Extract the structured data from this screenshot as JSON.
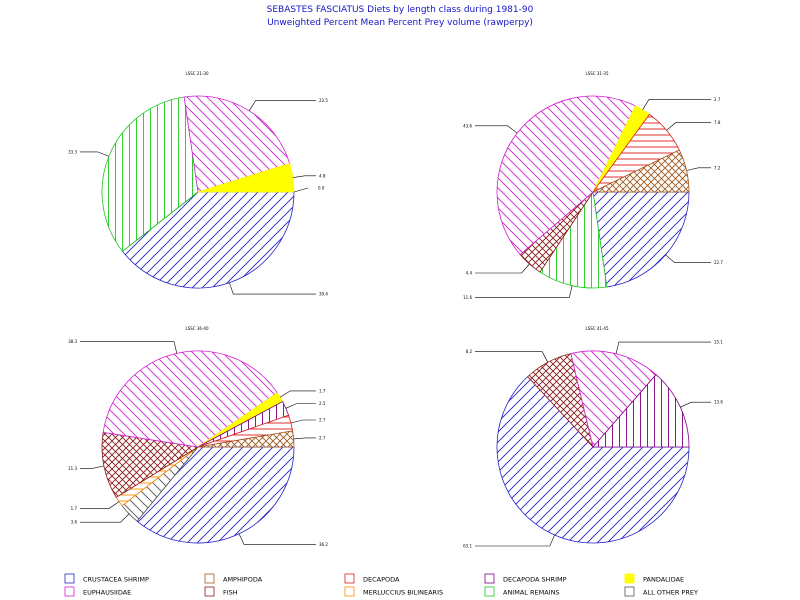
{
  "header": {
    "title": "SEBASTES FASCIATUS Diets by length class during 1981-90",
    "subtitle": "Unweighted Percent Mean Percent Prey  volume (rawperpy)"
  },
  "legend": [
    {
      "name": "CRUSTACEA SHRIMP",
      "color": "#2323c8",
      "pattern": "diag",
      "icon": "blue-diagonal-hatch-swatch"
    },
    {
      "name": "AMPHIPODA",
      "color": "#a0581e",
      "pattern": "cross",
      "icon": "brown-crosshatch-swatch"
    },
    {
      "name": "DECAPODA",
      "color": "#e01b1b",
      "pattern": "horiz",
      "icon": "red-horizontal-hatch-swatch"
    },
    {
      "name": "DECAPODA SHRIMP",
      "color": "#800080",
      "pattern": "vert",
      "icon": "purple-vertical-hatch-swatch"
    },
    {
      "name": "PANDALIDAE",
      "color": "#ffff00",
      "pattern": "solid",
      "icon": "yellow-solid-swatch"
    },
    {
      "name": "EUPHAUSIIDAE",
      "color": "#d21ed2",
      "pattern": "diagL",
      "icon": "magenta-diagonal-hatch-swatch"
    },
    {
      "name": "FISH",
      "color": "#8b1a1a",
      "pattern": "cross",
      "icon": "darkred-crosshatch-swatch"
    },
    {
      "name": "MERLUCCIUS BILINEARIS",
      "color": "#ff8c00",
      "pattern": "horiz",
      "icon": "orange-horizontal-hatch-swatch"
    },
    {
      "name": "ANIMAL REMAINS",
      "color": "#1ec81e",
      "pattern": "vert",
      "icon": "green-vertical-hatch-swatch"
    },
    {
      "name": "ALL OTHER PREY",
      "color": "#555555",
      "pattern": "diagL",
      "icon": "grey-diagonal-hatch-swatch"
    }
  ],
  "chart_data": [
    {
      "type": "pie",
      "title": "LSSC 21-30",
      "slices": [
        {
          "category": "CRUSTACEA SHRIMP",
          "value": 39.4,
          "label": "39.4"
        },
        {
          "category": "ANIMAL REMAINS",
          "value": 33.3,
          "label": "33.3"
        },
        {
          "category": "EUPHAUSIIDAE",
          "value": 22.5,
          "label": "22.5"
        },
        {
          "category": "PANDALIDAE",
          "value": 4.8,
          "label": "4.8"
        }
      ],
      "extra_labels": [
        "0.0"
      ]
    },
    {
      "type": "pie",
      "title": "LSSC 31-35",
      "slices": [
        {
          "category": "CRUSTACEA SHRIMP",
          "value": 22.7,
          "label": "22.7"
        },
        {
          "category": "ANIMAL REMAINS",
          "value": 11.6,
          "label": "11.6"
        },
        {
          "category": "FISH",
          "value": 4.4,
          "label": "4.4"
        },
        {
          "category": "EUPHAUSIIDAE",
          "value": 43.6,
          "label": "43.6"
        },
        {
          "category": "PANDALIDAE",
          "value": 2.7,
          "label": "2.7"
        },
        {
          "category": "DECAPODA",
          "value": 7.8,
          "label": "7.8"
        },
        {
          "category": "AMPHIPODA",
          "value": 7.2,
          "label": "7.2"
        }
      ]
    },
    {
      "type": "pie",
      "title": "LSSC 36-40",
      "slices": [
        {
          "category": "CRUSTACEA SHRIMP",
          "value": 36.2,
          "label": "36.2"
        },
        {
          "category": "ALL OTHER PREY",
          "value": 3.6,
          "label": "3.6"
        },
        {
          "category": "MERLUCCIUS BILINEARIS",
          "value": 1.7,
          "label": "1.7"
        },
        {
          "category": "FISH",
          "value": 11.3,
          "label": "11.3"
        },
        {
          "category": "EUPHAUSIIDAE",
          "value": 38.3,
          "label": "38.3"
        },
        {
          "category": "PANDALIDAE",
          "value": 1.7,
          "label": "1.7"
        },
        {
          "category": "DECAPODA SHRIMP",
          "value": 2.5,
          "label": "2.5"
        },
        {
          "category": "DECAPODA",
          "value": 2.7,
          "label": "2.7"
        },
        {
          "category": "AMPHIPODA",
          "value": 2.7,
          "label": "2.7"
        }
      ]
    },
    {
      "type": "pie",
      "title": "LSSC 41-45",
      "slices": [
        {
          "category": "CRUSTACEA SHRIMP",
          "value": 63.1,
          "label": "63.1"
        },
        {
          "category": "FISH",
          "value": 8.2,
          "label": "8.2"
        },
        {
          "category": "EUPHAUSIIDAE",
          "value": 15.1,
          "label": "15.1"
        },
        {
          "category": "DECAPODA SHRIMP",
          "value": 13.6,
          "label": "13.6"
        }
      ]
    }
  ]
}
